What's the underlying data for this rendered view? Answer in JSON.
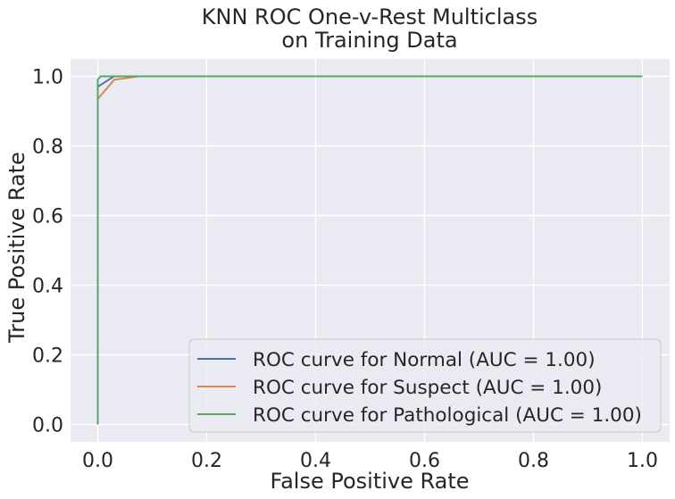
{
  "chart_data": {
    "type": "line",
    "title": [
      "KNN ROC One-v-Rest Multiclass",
      "on Training Data"
    ],
    "xlabel": "False Positive Rate",
    "ylabel": "True Positive Rate",
    "xlim": [
      -0.05,
      1.05
    ],
    "ylim": [
      -0.05,
      1.05
    ],
    "xticks": [
      0.0,
      0.2,
      0.4,
      0.6,
      0.8,
      1.0
    ],
    "xtick_labels": [
      "0.0",
      "0.2",
      "0.4",
      "0.6",
      "0.8",
      "1.0"
    ],
    "yticks": [
      0.0,
      0.2,
      0.4,
      0.6,
      0.8,
      1.0
    ],
    "ytick_labels": [
      "0.0",
      "0.2",
      "0.4",
      "0.6",
      "0.8",
      "1.0"
    ],
    "grid": true,
    "legend_position": "lower-right",
    "series": [
      {
        "name": "ROC curve for Normal (AUC = 1.00)",
        "color": "#4c72b0",
        "x": [
          0.0,
          0.0,
          0.0,
          0.03,
          1.0
        ],
        "y": [
          0.0,
          0.96,
          0.97,
          1.0,
          1.0
        ]
      },
      {
        "name": "ROC curve for Suspect (AUC = 1.00)",
        "color": "#dd8452",
        "x": [
          0.0,
          0.0,
          0.03,
          0.075,
          1.0
        ],
        "y": [
          0.0,
          0.935,
          0.99,
          1.0,
          1.0
        ]
      },
      {
        "name": "ROC curve for Pathological (AUC = 1.00)",
        "color": "#55a868",
        "x": [
          0.0,
          0.0,
          0.005,
          1.0
        ],
        "y": [
          0.0,
          0.99,
          1.0,
          1.0
        ]
      }
    ]
  }
}
